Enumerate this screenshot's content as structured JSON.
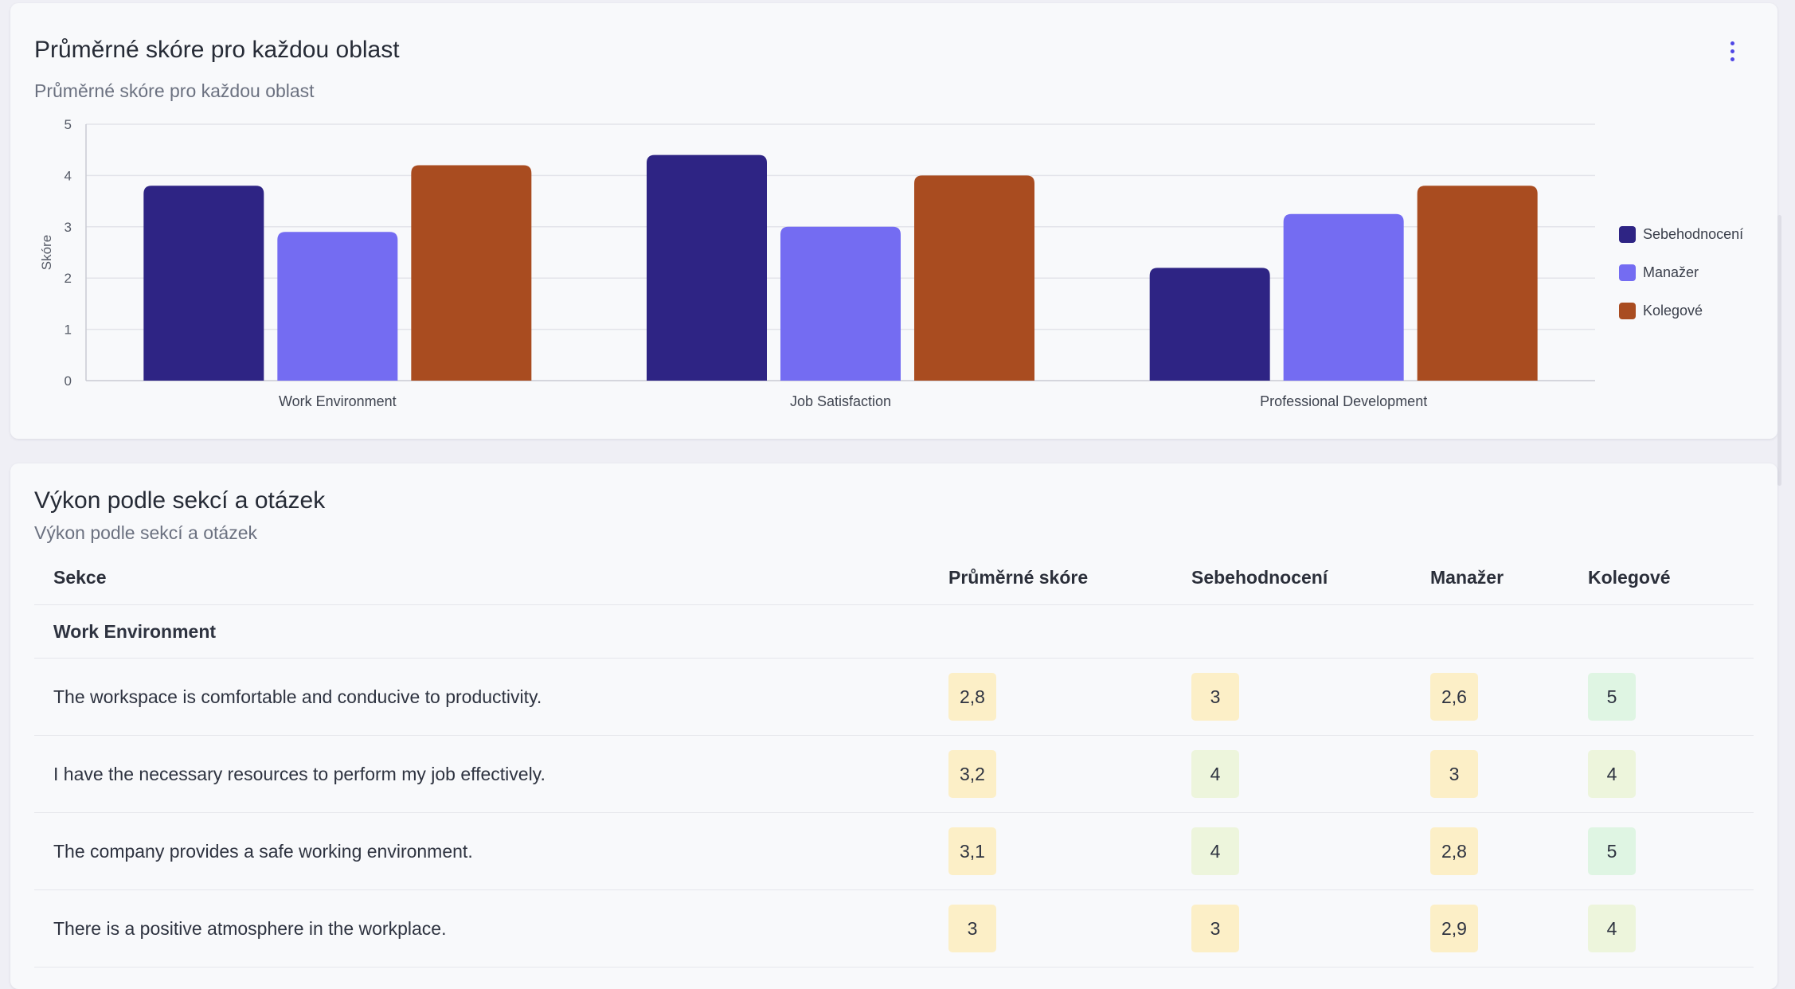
{
  "chart_card": {
    "title": "Průměrné skóre pro každou oblast",
    "subtitle": "Průměrné skóre pro každou oblast",
    "menu_icon": "kebab-vertical-icon"
  },
  "chart_data": {
    "type": "bar",
    "categories": [
      "Work Environment",
      "Job Satisfaction",
      "Professional Development"
    ],
    "series": [
      {
        "name": "Sebehodnocení",
        "color": "#2e2484",
        "values": [
          3.8,
          4.4,
          2.2
        ]
      },
      {
        "name": "Manažer",
        "color": "#746cf2",
        "values": [
          2.9,
          3.0,
          3.25
        ]
      },
      {
        "name": "Kolegové",
        "color": "#a94c20",
        "values": [
          4.2,
          4.0,
          3.8
        ]
      }
    ],
    "title": "",
    "xlabel": "",
    "ylabel": "Skóre",
    "ylim": [
      0,
      5
    ],
    "yticks": [
      0,
      1,
      2,
      3,
      4,
      5
    ],
    "grid": true,
    "legend_position": "right"
  },
  "table_card": {
    "title": "Výkon podle sekcí a otázek",
    "subtitle": "Výkon podle sekcí a otázek",
    "headers": [
      "Sekce",
      "Průměrné skóre",
      "Sebehodnocení",
      "Manažer",
      "Kolegové"
    ],
    "section": "Work Environment",
    "rows": [
      {
        "question": "The workspace is comfortable and conducive to productivity.",
        "avg": "2,8",
        "self": "3",
        "manager": "2,6",
        "peers": "5"
      },
      {
        "question": "I have the necessary resources to perform my job effectively.",
        "avg": "3,2",
        "self": "4",
        "manager": "3",
        "peers": "4"
      },
      {
        "question": "The company provides a safe working environment.",
        "avg": "3,1",
        "self": "4",
        "manager": "2,8",
        "peers": "5"
      },
      {
        "question": "There is a positive atmosphere in the workplace.",
        "avg": "3",
        "self": "3",
        "manager": "2,9",
        "peers": "4"
      }
    ]
  },
  "colors": {
    "score_yellow": "#fcefc7",
    "score_light_green": "#edf5dc",
    "score_green": "#dff5e3",
    "accent": "#4f46e5"
  }
}
